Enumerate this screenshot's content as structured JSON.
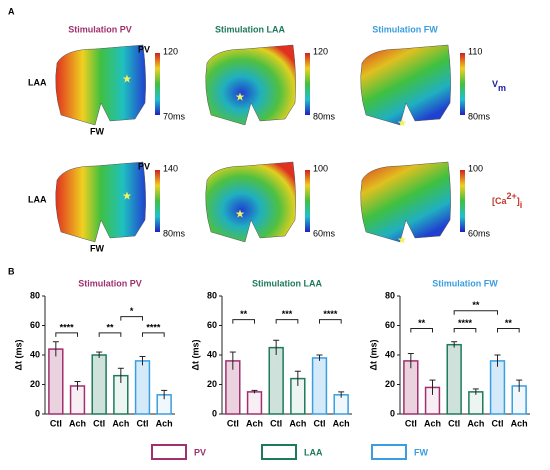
{
  "panel_a": {
    "label": "A",
    "columns": [
      "Stimulation PV",
      "Stimulation LAA",
      "Stimulation FW"
    ],
    "column_colors": [
      "#a0306e",
      "#1e7a5a",
      "#3a9ee0"
    ],
    "rows": [
      {
        "name": {
          "main": "V",
          "sub": "m"
        },
        "color": "#1a1aa6",
        "sites": [
          "PV",
          "LAA",
          "FW"
        ],
        "colorbars": [
          {
            "max": "120",
            "min": "70ms"
          },
          {
            "max": "120",
            "min": "80ms"
          },
          {
            "max": "110",
            "min": "80ms"
          }
        ]
      },
      {
        "name": {
          "main": "[Ca",
          "sup": "2+",
          "tail": "]",
          "sub": "i"
        },
        "color": "#c0392b",
        "sites": [
          "PV",
          "LAA",
          "FW"
        ],
        "colorbars": [
          {
            "max": "140",
            "min": "80ms"
          },
          {
            "max": "100",
            "min": "60ms"
          },
          {
            "max": "100",
            "min": "60ms"
          }
        ]
      }
    ]
  },
  "panel_b": {
    "label": "B"
  },
  "chart_data": [
    {
      "type": "bar",
      "title": "Stimulation PV",
      "title_color": "#a0306e",
      "ylabel": "Δt (ms)",
      "categories": [
        "Ctl",
        "Ach",
        "Ctl",
        "Ach",
        "Ctl",
        "Ach"
      ],
      "values": [
        44,
        19,
        40,
        26,
        36,
        13
      ],
      "errors": [
        5,
        3,
        2,
        5,
        3,
        3
      ],
      "colors": [
        "#a0306e",
        "#a0306e",
        "#1e7a5a",
        "#1e7a5a",
        "#3a9ee0",
        "#3a9ee0"
      ],
      "ylim": [
        0,
        80
      ],
      "yticks": [
        0,
        20,
        40,
        60,
        80
      ],
      "annotations": [
        {
          "text": "****",
          "between": [
            0,
            1
          ],
          "y": 55
        },
        {
          "text": "**",
          "between": [
            2,
            3
          ],
          "y": 55
        },
        {
          "text": "****",
          "between": [
            4,
            5
          ],
          "y": 55
        },
        {
          "text": "*",
          "between": [
            3,
            4
          ],
          "y": 66
        }
      ]
    },
    {
      "type": "bar",
      "title": "Stimulation LAA",
      "title_color": "#1e7a5a",
      "ylabel": "Δt (ms)",
      "categories": [
        "Ctl",
        "Ach",
        "Ctl",
        "Ach",
        "Ctl",
        "Ach"
      ],
      "values": [
        36,
        15,
        45,
        24,
        38,
        13
      ],
      "errors": [
        6,
        1,
        5,
        5,
        2,
        2
      ],
      "colors": [
        "#a0306e",
        "#a0306e",
        "#1e7a5a",
        "#1e7a5a",
        "#3a9ee0",
        "#3a9ee0"
      ],
      "ylim": [
        0,
        80
      ],
      "yticks": [
        0,
        20,
        40,
        60,
        80
      ],
      "annotations": [
        {
          "text": "**",
          "between": [
            0,
            1
          ],
          "y": 64
        },
        {
          "text": "***",
          "between": [
            2,
            3
          ],
          "y": 64
        },
        {
          "text": "****",
          "between": [
            4,
            5
          ],
          "y": 64
        }
      ]
    },
    {
      "type": "bar",
      "title": "Stimulation FW",
      "title_color": "#3a9ee0",
      "ylabel": "Δt (ms)",
      "categories": [
        "Ctl",
        "Ach",
        "Ctl",
        "Ach",
        "Ctl",
        "Ach"
      ],
      "values": [
        36,
        18,
        47,
        15,
        36,
        19
      ],
      "errors": [
        5,
        5,
        2,
        2,
        4,
        4
      ],
      "colors": [
        "#a0306e",
        "#a0306e",
        "#1e7a5a",
        "#1e7a5a",
        "#3a9ee0",
        "#3a9ee0"
      ],
      "ylim": [
        0,
        80
      ],
      "yticks": [
        0,
        20,
        40,
        60,
        80
      ],
      "annotations": [
        {
          "text": "**",
          "between": [
            0,
            1
          ],
          "y": 58
        },
        {
          "text": "****",
          "between": [
            2,
            3
          ],
          "y": 58
        },
        {
          "text": "**",
          "between": [
            4,
            5
          ],
          "y": 58
        },
        {
          "text": "**",
          "between": [
            2,
            4
          ],
          "y": 70
        }
      ]
    }
  ],
  "legend": [
    {
      "name": "PV",
      "color": "#a0306e"
    },
    {
      "name": "LAA",
      "color": "#1e7a5a"
    },
    {
      "name": "FW",
      "color": "#3a9ee0"
    }
  ]
}
